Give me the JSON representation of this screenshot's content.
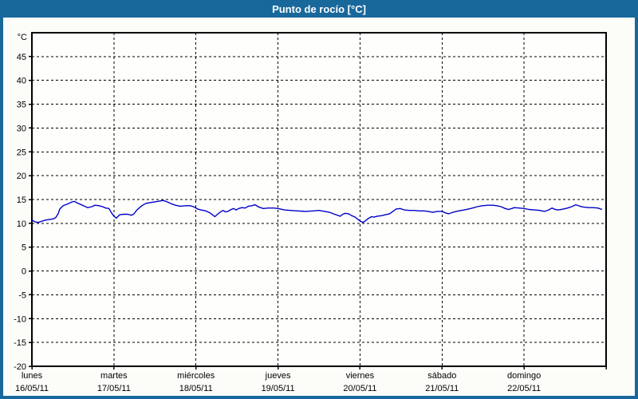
{
  "header": {
    "title": "Punto de rocío [°C]"
  },
  "colors": {
    "frame_blue": "#19689b",
    "title_text": "#ffffff",
    "panel_bg": "#fcfdf9",
    "plot_bg": "#fefefd",
    "grid": "#000000",
    "axis": "#000000",
    "tick_text": "#000000",
    "series_line": "#0000cc"
  },
  "chart_data": {
    "type": "line",
    "title": "Punto de rocío [°C]",
    "ylabel": "°C",
    "xlabel": "",
    "ylim": [
      -20,
      50
    ],
    "x_days_total": 7,
    "grid": "dashed",
    "legend": "none",
    "y_ticks": [
      45,
      40,
      35,
      30,
      25,
      20,
      15,
      10,
      5,
      0,
      -5,
      -10,
      -15,
      -20
    ],
    "y_gridline_values": [
      45,
      40,
      35,
      30,
      25,
      20,
      15,
      10,
      5,
      0,
      -5,
      -10,
      -15
    ],
    "x_categories": [
      {
        "name": "lunes",
        "date": "16/05/11"
      },
      {
        "name": "martes",
        "date": "17/05/11"
      },
      {
        "name": "miércoles",
        "date": "18/05/11"
      },
      {
        "name": "jueves",
        "date": "19/05/11"
      },
      {
        "name": "viernes",
        "date": "20/05/11"
      },
      {
        "name": "sábado",
        "date": "21/05/11"
      },
      {
        "name": "domingo",
        "date": "22/05/11"
      }
    ],
    "series": [
      {
        "name": "Punto de rocío",
        "unit": "°C",
        "color": "#0000cc",
        "points": [
          [
            0.0,
            10.7
          ],
          [
            0.04,
            10.3
          ],
          [
            0.08,
            10.2
          ],
          [
            0.13,
            10.5
          ],
          [
            0.17,
            10.7
          ],
          [
            0.22,
            10.8
          ],
          [
            0.27,
            11.0
          ],
          [
            0.29,
            11.2
          ],
          [
            0.32,
            12.0
          ],
          [
            0.34,
            13.0
          ],
          [
            0.38,
            13.7
          ],
          [
            0.41,
            13.9
          ],
          [
            0.44,
            14.1
          ],
          [
            0.49,
            14.5
          ],
          [
            0.52,
            14.6
          ],
          [
            0.55,
            14.3
          ],
          [
            0.59,
            14.0
          ],
          [
            0.63,
            13.7
          ],
          [
            0.68,
            13.3
          ],
          [
            0.73,
            13.5
          ],
          [
            0.77,
            13.8
          ],
          [
            0.82,
            13.7
          ],
          [
            0.86,
            13.5
          ],
          [
            0.9,
            13.2
          ],
          [
            0.94,
            13.1
          ],
          [
            0.97,
            12.2
          ],
          [
            1.0,
            11.5
          ],
          [
            1.03,
            11.1
          ],
          [
            1.07,
            11.8
          ],
          [
            1.12,
            11.9
          ],
          [
            1.17,
            11.9
          ],
          [
            1.21,
            11.7
          ],
          [
            1.24,
            11.9
          ],
          [
            1.28,
            12.8
          ],
          [
            1.34,
            13.7
          ],
          [
            1.39,
            14.2
          ],
          [
            1.46,
            14.4
          ],
          [
            1.53,
            14.6
          ],
          [
            1.6,
            14.8
          ],
          [
            1.65,
            14.5
          ],
          [
            1.7,
            14.1
          ],
          [
            1.75,
            13.8
          ],
          [
            1.81,
            13.6
          ],
          [
            1.87,
            13.7
          ],
          [
            1.93,
            13.7
          ],
          [
            1.97,
            13.5
          ],
          [
            2.02,
            13.0
          ],
          [
            2.06,
            12.8
          ],
          [
            2.12,
            12.6
          ],
          [
            2.17,
            12.2
          ],
          [
            2.2,
            11.8
          ],
          [
            2.23,
            11.4
          ],
          [
            2.27,
            12.0
          ],
          [
            2.3,
            12.4
          ],
          [
            2.33,
            12.7
          ],
          [
            2.36,
            12.4
          ],
          [
            2.39,
            12.5
          ],
          [
            2.43,
            12.9
          ],
          [
            2.46,
            13.1
          ],
          [
            2.49,
            12.8
          ],
          [
            2.52,
            13.1
          ],
          [
            2.56,
            13.3
          ],
          [
            2.6,
            13.2
          ],
          [
            2.64,
            13.6
          ],
          [
            2.68,
            13.7
          ],
          [
            2.72,
            13.9
          ],
          [
            2.77,
            13.4
          ],
          [
            2.82,
            13.1
          ],
          [
            2.88,
            13.2
          ],
          [
            2.95,
            13.2
          ],
          [
            3.0,
            13.1
          ],
          [
            3.08,
            12.8
          ],
          [
            3.15,
            12.7
          ],
          [
            3.24,
            12.6
          ],
          [
            3.33,
            12.5
          ],
          [
            3.43,
            12.6
          ],
          [
            3.5,
            12.7
          ],
          [
            3.57,
            12.5
          ],
          [
            3.63,
            12.3
          ],
          [
            3.69,
            11.9
          ],
          [
            3.76,
            11.5
          ],
          [
            3.79,
            11.9
          ],
          [
            3.82,
            12.1
          ],
          [
            3.86,
            12.0
          ],
          [
            3.89,
            11.7
          ],
          [
            3.94,
            11.3
          ],
          [
            3.97,
            10.9
          ],
          [
            4.01,
            10.4
          ],
          [
            4.04,
            10.2
          ],
          [
            4.07,
            10.6
          ],
          [
            4.1,
            11.0
          ],
          [
            4.14,
            11.4
          ],
          [
            4.17,
            11.3
          ],
          [
            4.21,
            11.5
          ],
          [
            4.26,
            11.6
          ],
          [
            4.31,
            11.8
          ],
          [
            4.36,
            12.0
          ],
          [
            4.4,
            12.5
          ],
          [
            4.44,
            13.0
          ],
          [
            4.49,
            13.1
          ],
          [
            4.54,
            12.8
          ],
          [
            4.6,
            12.7
          ],
          [
            4.66,
            12.7
          ],
          [
            4.72,
            12.6
          ],
          [
            4.78,
            12.6
          ],
          [
            4.83,
            12.5
          ],
          [
            4.89,
            12.3
          ],
          [
            4.94,
            12.5
          ],
          [
            5.0,
            12.5
          ],
          [
            5.04,
            12.2
          ],
          [
            5.08,
            12.0
          ],
          [
            5.13,
            12.3
          ],
          [
            5.2,
            12.6
          ],
          [
            5.27,
            12.8
          ],
          [
            5.35,
            13.1
          ],
          [
            5.43,
            13.5
          ],
          [
            5.49,
            13.7
          ],
          [
            5.56,
            13.8
          ],
          [
            5.62,
            13.8
          ],
          [
            5.67,
            13.7
          ],
          [
            5.72,
            13.5
          ],
          [
            5.77,
            13.1
          ],
          [
            5.81,
            12.9
          ],
          [
            5.85,
            13.1
          ],
          [
            5.88,
            13.3
          ],
          [
            5.94,
            13.2
          ],
          [
            6.0,
            13.1
          ],
          [
            6.06,
            12.9
          ],
          [
            6.13,
            12.8
          ],
          [
            6.19,
            12.7
          ],
          [
            6.25,
            12.5
          ],
          [
            6.3,
            12.8
          ],
          [
            6.34,
            13.2
          ],
          [
            6.38,
            12.9
          ],
          [
            6.42,
            12.8
          ],
          [
            6.48,
            13.0
          ],
          [
            6.53,
            13.2
          ],
          [
            6.58,
            13.5
          ],
          [
            6.63,
            13.9
          ],
          [
            6.68,
            13.6
          ],
          [
            6.73,
            13.4
          ],
          [
            6.79,
            13.3
          ],
          [
            6.84,
            13.3
          ],
          [
            6.9,
            13.2
          ],
          [
            6.95,
            12.9
          ]
        ]
      }
    ]
  }
}
